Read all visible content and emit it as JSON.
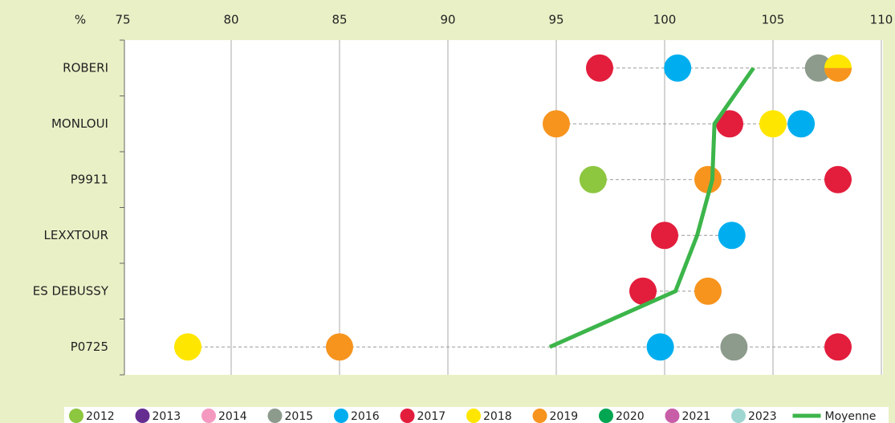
{
  "chart_data": {
    "type": "dot",
    "x_label": "%",
    "categories": [
      "ROBERI",
      "MONLOUI",
      "P9911",
      "LEXXTOUR",
      "ES DEBUSSY",
      "P0725"
    ],
    "xlim": [
      75,
      110
    ],
    "xticks": [
      75,
      80,
      85,
      90,
      95,
      100,
      105,
      110
    ],
    "grid": true,
    "series": [
      {
        "name": "2012",
        "color": "#8dc63f",
        "values": [
          null,
          null,
          96.7,
          null,
          null,
          null
        ]
      },
      {
        "name": "2013",
        "color": "#662d91",
        "values": [
          null,
          null,
          null,
          null,
          null,
          null
        ]
      },
      {
        "name": "2014",
        "color": "#f49ac1",
        "values": [
          null,
          null,
          null,
          null,
          null,
          null
        ]
      },
      {
        "name": "2015",
        "color": "#8c9b8c",
        "values": [
          107.1,
          null,
          null,
          null,
          null,
          103.2
        ]
      },
      {
        "name": "2016",
        "color": "#00aeef",
        "values": [
          100.6,
          106.3,
          null,
          103.1,
          null,
          99.8
        ]
      },
      {
        "name": "2017",
        "color": "#e31d3c",
        "values": [
          97,
          103,
          108,
          100,
          99,
          108
        ]
      },
      {
        "name": "2018",
        "color": "#ffe600",
        "values": [
          108,
          105,
          null,
          null,
          null,
          78
        ]
      },
      {
        "name": "2019",
        "color": "#f7941d",
        "values": [
          108,
          95,
          102,
          null,
          102,
          85
        ]
      },
      {
        "name": "2020",
        "color": "#00a651",
        "values": [
          null,
          null,
          null,
          null,
          null,
          null
        ]
      },
      {
        "name": "2021",
        "color": "#c85ea8",
        "values": [
          null,
          null,
          null,
          null,
          null,
          null
        ]
      },
      {
        "name": "2023",
        "color": "#9fd6d2",
        "values": [
          null,
          null,
          null,
          null,
          null,
          null
        ]
      },
      {
        "name": "Moyenne",
        "color": "#3cb54a",
        "type": "line",
        "values": [
          104.1,
          102.3,
          102.2,
          101.5,
          100.5,
          94.7
        ]
      }
    ]
  }
}
